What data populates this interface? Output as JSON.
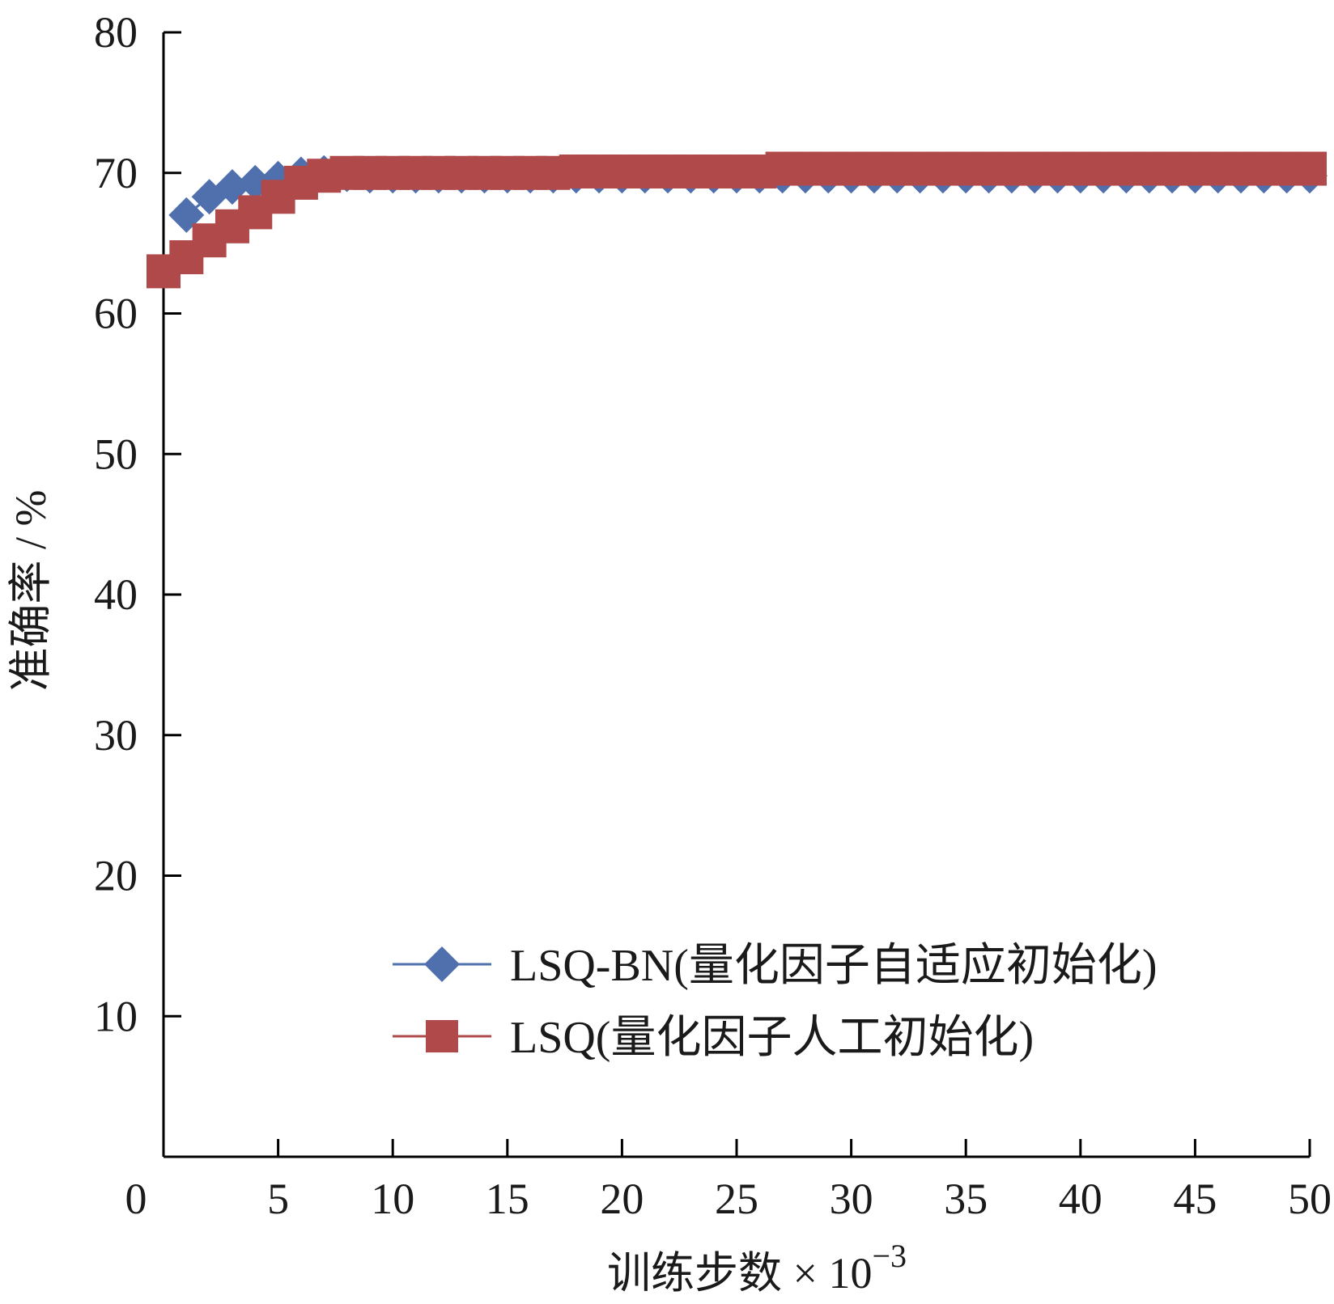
{
  "chart_data": {
    "type": "line",
    "xlabel": "训练步数 × 10",
    "xlabel_exponent": "−3",
    "ylabel": "准确率 / %",
    "xlim": [
      0,
      50
    ],
    "ylim": [
      0,
      80
    ],
    "xticks": [
      "0",
      "5",
      "10",
      "15",
      "20",
      "25",
      "30",
      "35",
      "40",
      "45",
      "50"
    ],
    "yticks": [
      "10",
      "20",
      "30",
      "40",
      "50",
      "60",
      "70",
      "80"
    ],
    "grid": false,
    "legend_position": "lower-right",
    "series": [
      {
        "name": "LSQ-BN(量化因子自适应初始化)",
        "color": "#4f6fad",
        "marker": "diamond",
        "x": [
          1,
          2,
          3,
          4,
          5,
          6,
          7,
          8,
          9,
          10,
          11,
          12,
          13,
          14,
          15,
          16,
          17,
          18,
          19,
          20,
          21,
          22,
          23,
          24,
          25,
          26,
          27,
          28,
          29,
          30,
          31,
          32,
          33,
          34,
          35,
          36,
          37,
          38,
          39,
          40,
          41,
          42,
          43,
          44,
          45,
          46,
          47,
          48,
          49,
          50
        ],
        "y": [
          67,
          68.3,
          69,
          69.3,
          69.6,
          69.9,
          70,
          69.9,
          69.8,
          69.8,
          69.8,
          69.8,
          69.8,
          69.8,
          69.8,
          69.8,
          69.8,
          69.8,
          69.8,
          69.8,
          69.8,
          69.8,
          69.8,
          69.8,
          69.8,
          69.8,
          69.8,
          69.8,
          69.8,
          69.8,
          69.8,
          69.8,
          69.8,
          69.8,
          69.8,
          69.8,
          69.8,
          69.8,
          69.8,
          69.8,
          69.8,
          69.8,
          69.8,
          69.8,
          69.8,
          69.8,
          69.8,
          69.8,
          69.8,
          69.8
        ]
      },
      {
        "name": "LSQ(量化因子人工初始化)",
        "color": "#b04a4a",
        "marker": "square",
        "x": [
          0,
          1,
          2,
          3,
          4,
          5,
          6,
          7,
          8,
          9,
          10,
          11,
          12,
          13,
          14,
          15,
          16,
          17,
          18,
          19,
          20,
          21,
          22,
          23,
          24,
          25,
          26,
          27,
          28,
          29,
          30,
          31,
          32,
          33,
          34,
          35,
          36,
          37,
          38,
          39,
          40,
          41,
          42,
          43,
          44,
          45,
          46,
          47,
          48,
          49,
          50
        ],
        "y": [
          63,
          64,
          65.2,
          66.2,
          67.2,
          68.3,
          69.3,
          69.8,
          70,
          70,
          70,
          70,
          70,
          70,
          70,
          70,
          70,
          70,
          70.1,
          70.1,
          70.1,
          70.1,
          70.1,
          70.1,
          70.1,
          70.1,
          70.1,
          70.3,
          70.3,
          70.3,
          70.3,
          70.3,
          70.3,
          70.3,
          70.3,
          70.3,
          70.3,
          70.3,
          70.3,
          70.3,
          70.3,
          70.3,
          70.3,
          70.3,
          70.3,
          70.3,
          70.3,
          70.3,
          70.3,
          70.3,
          70.3
        ]
      }
    ]
  }
}
